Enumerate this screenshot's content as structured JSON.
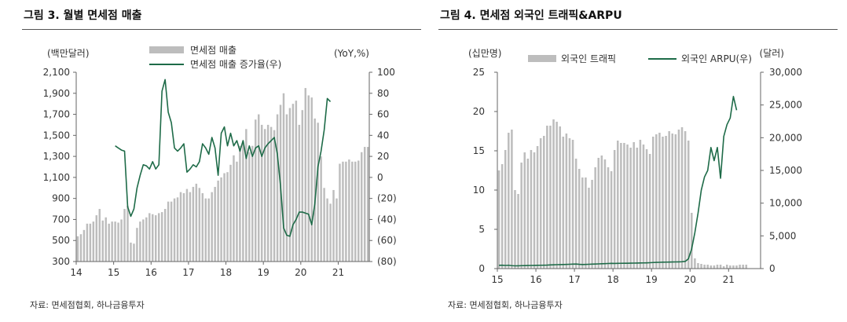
{
  "colors": {
    "bar": "#bdbdbd",
    "line": "#1e6b48",
    "axis": "#666666",
    "text": "#333333"
  },
  "figure_left": {
    "title": "그림 3. 월별 면세점 매출",
    "source": "자료: 면세점협회, 하나금융투자"
  },
  "figure_right": {
    "title": "그림 4. 면세점 외국인 트래픽&ARPU",
    "source": "자료: 면세점협회, 하나금융투자"
  },
  "chart_data": [
    {
      "type": "bar+line",
      "title": "월별 면세점 매출",
      "left_unit": "(백만달러)",
      "right_unit": "(YoY,%)",
      "y_left": {
        "min": 300,
        "max": 2100,
        "ticks": [
          300,
          500,
          700,
          900,
          1100,
          1300,
          1500,
          1700,
          1900,
          2100
        ],
        "tick_labels": [
          "300",
          "500",
          "700",
          "900",
          "1,100",
          "1,300",
          "1,500",
          "1,700",
          "1,900",
          "2,100"
        ]
      },
      "y_right": {
        "min": -80,
        "max": 100,
        "ticks": [
          -80,
          -60,
          -40,
          -20,
          0,
          20,
          40,
          60,
          80,
          100
        ],
        "tick_labels": [
          "(80)",
          "(60)",
          "(40)",
          "(20)",
          "0",
          "20",
          "40",
          "60",
          "80",
          "100"
        ]
      },
      "x": {
        "start": 2014.0,
        "end": 2021.83,
        "ticks": [
          2014,
          2015,
          2016,
          2017,
          2018,
          2019,
          2020,
          2021
        ],
        "tick_labels": [
          "14",
          "15",
          "16",
          "17",
          "18",
          "19",
          "20",
          "21"
        ]
      },
      "legend": [
        {
          "kind": "bar",
          "label": "면세점 매출"
        },
        {
          "kind": "line",
          "label": "면세점 매출 증가율(우)"
        }
      ],
      "bar_series": {
        "name": "면세점 매출",
        "axis": "left",
        "start": 2014.0,
        "step_months": 1,
        "values": [
          540,
          560,
          600,
          660,
          660,
          680,
          740,
          800,
          690,
          720,
          660,
          680,
          680,
          670,
          700,
          800,
          830,
          480,
          470,
          620,
          680,
          700,
          720,
          760,
          750,
          740,
          760,
          770,
          800,
          870,
          870,
          900,
          910,
          960,
          950,
          990,
          960,
          1010,
          1040,
          1000,
          950,
          900,
          900,
          960,
          1010,
          1070,
          1100,
          1140,
          1150,
          1220,
          1310,
          1250,
          1400,
          1440,
          1560,
          1340,
          1400,
          1650,
          1700,
          1600,
          1560,
          1600,
          1580,
          1550,
          1700,
          1790,
          1900,
          1700,
          1760,
          1800,
          1830,
          1600,
          1740,
          1950,
          1880,
          1860,
          1660,
          1620,
          1300,
          1000,
          900,
          850,
          980,
          900,
          1230,
          1250,
          1250,
          1270,
          1250,
          1250,
          1260,
          1340,
          1390,
          1390
        ]
      },
      "line_series": {
        "name": "면세점 매출 증가율(우)",
        "axis": "right",
        "start": 2015.0,
        "step_months": 1,
        "values": [
          30,
          28,
          26,
          25,
          -28,
          -37,
          -30,
          -10,
          2,
          12,
          11,
          8,
          15,
          8,
          12,
          82,
          93,
          62,
          52,
          28,
          25,
          28,
          32,
          5,
          8,
          12,
          10,
          15,
          32,
          28,
          22,
          38,
          28,
          2,
          42,
          48,
          30,
          42,
          30,
          35,
          25,
          35,
          18,
          30,
          20,
          28,
          30,
          20,
          28,
          32,
          35,
          38,
          22,
          -8,
          -48,
          -55,
          -56,
          -45,
          -40,
          -33,
          -33,
          -34,
          -35,
          -45,
          -25,
          10,
          25,
          45,
          75,
          72
        ]
      }
    },
    {
      "type": "bar+line",
      "title": "면세점 외국인 트래픽&ARPU",
      "left_unit": "(십만명)",
      "right_unit": "(달러)",
      "y_left": {
        "min": 0,
        "max": 25,
        "ticks": [
          0,
          5,
          10,
          15,
          20,
          25
        ],
        "tick_labels": [
          "0",
          "5",
          "10",
          "15",
          "20",
          "25"
        ]
      },
      "y_right": {
        "min": 0,
        "max": 30000,
        "ticks": [
          0,
          5000,
          10000,
          15000,
          20000,
          25000,
          30000
        ],
        "tick_labels": [
          "0",
          "5,000",
          "10,000",
          "15,000",
          "20,000",
          "25,000",
          "30,000"
        ]
      },
      "x": {
        "start": 2015.0,
        "end": 2021.83,
        "ticks": [
          2015,
          2016,
          2017,
          2018,
          2019,
          2020,
          2021
        ],
        "tick_labels": [
          "15",
          "16",
          "17",
          "18",
          "19",
          "20",
          "21"
        ]
      },
      "legend": [
        {
          "kind": "bar",
          "label": "외국인 트래픽"
        },
        {
          "kind": "line",
          "label": "외국인 ARPU(우)"
        }
      ],
      "bar_series": {
        "name": "외국인 트래픽",
        "axis": "left",
        "start": 2015.0,
        "step_months": 1,
        "values": [
          12.5,
          13.3,
          15.1,
          17.3,
          17.7,
          10,
          9.5,
          13.5,
          14.8,
          14.0,
          15.1,
          14.8,
          15.6,
          16.6,
          16.9,
          18.2,
          18.2,
          19.0,
          18.7,
          18.1,
          16.8,
          17.2,
          16.6,
          16.4,
          14.0,
          12.7,
          11.6,
          11.6,
          10.3,
          11.3,
          12.9,
          14.1,
          14.4,
          13.9,
          12.9,
          12.4,
          15.1,
          16.3,
          16.0,
          16.0,
          15.8,
          15.4,
          16.1,
          15.4,
          16.4,
          15.8,
          15.2,
          14.6,
          16.8,
          17.1,
          17.3,
          16.8,
          16.9,
          17.5,
          17.2,
          17.1,
          17.7,
          18.0,
          17.5,
          16.3,
          7.1,
          1.3,
          0.7,
          0.6,
          0.5,
          0.5,
          0.4,
          0.4,
          0.5,
          0.5,
          0.3,
          0.5,
          0.4,
          0.4,
          0.4,
          0.5,
          0.5,
          0.5
        ]
      },
      "line_series": {
        "name": "외국인 ARPU(우)",
        "axis": "right",
        "start": 2015.0,
        "step_months": 1,
        "values": [
          500,
          520,
          480,
          510,
          450,
          420,
          430,
          450,
          460,
          470,
          480,
          490,
          500,
          510,
          520,
          530,
          560,
          580,
          600,
          610,
          620,
          640,
          660,
          680,
          700,
          650,
          620,
          640,
          660,
          680,
          700,
          720,
          740,
          760,
          780,
          800,
          790,
          800,
          810,
          820,
          820,
          830,
          840,
          850,
          860,
          870,
          880,
          900,
          930,
          950,
          960,
          980,
          990,
          1000,
          1010,
          1020,
          1030,
          1050,
          1100,
          1500,
          3000,
          5500,
          8500,
          12000,
          14000,
          15000,
          18500,
          16500,
          18500,
          13800,
          20200,
          22000,
          23000,
          26300,
          24200
        ]
      }
    }
  ]
}
